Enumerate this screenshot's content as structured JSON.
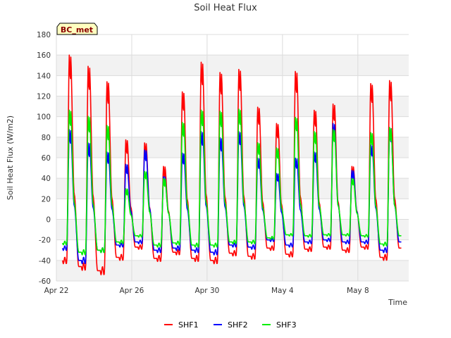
{
  "chart_data": {
    "type": "line",
    "title": "Soil Heat Flux",
    "xlabel": "Time",
    "ylabel": "Soil Heat Flux (W/m2)",
    "ylim": [
      -60,
      180
    ],
    "yticks": [
      -60,
      -40,
      -20,
      0,
      20,
      40,
      60,
      80,
      100,
      120,
      140,
      160,
      180
    ],
    "xlim_days": [
      0,
      18.7
    ],
    "xticks": [
      {
        "day": 0,
        "label": "Apr 22"
      },
      {
        "day": 4,
        "label": "Apr 26"
      },
      {
        "day": 8,
        "label": "Apr 30"
      },
      {
        "day": 12,
        "label": "May 4"
      },
      {
        "day": 16,
        "label": "May 8"
      }
    ],
    "tag": "BC_met",
    "legend_position": "bottom-center",
    "series": [
      {
        "name": "SHF1",
        "color": "#ff0000",
        "night": [
          -40,
          -46,
          -50,
          -37,
          -27,
          -38,
          -32,
          -38,
          -40,
          -33,
          -36,
          -28,
          -34,
          -29,
          -27,
          -30,
          -27,
          -37,
          -28
        ],
        "peaks": [
          161,
          150,
          135,
          78,
          75,
          52,
          125,
          154,
          144,
          147,
          110,
          94,
          145,
          107,
          113,
          52,
          133,
          136
        ]
      },
      {
        "name": "SHF2",
        "color": "#0000ff",
        "night": [
          -28,
          -40,
          -30,
          -25,
          -22,
          -30,
          -28,
          -30,
          -32,
          -25,
          -27,
          -20,
          -25,
          -22,
          -20,
          -22,
          -22,
          -30,
          -22
        ],
        "peaks": [
          88,
          75,
          66,
          54,
          68,
          42,
          65,
          86,
          80,
          86,
          60,
          45,
          60,
          66,
          94,
          48,
          73,
          90
        ]
      },
      {
        "name": "SHF3",
        "color": "#00ee00",
        "night": [
          -23,
          -32,
          -30,
          -22,
          -16,
          -25,
          -23,
          -25,
          -25,
          -22,
          -22,
          -18,
          -15,
          -16,
          -15,
          -15,
          -16,
          -24,
          -16
        ],
        "peaks": [
          107,
          101,
          92,
          30,
          47,
          40,
          95,
          107,
          106,
          108,
          75,
          70,
          100,
          86,
          88,
          40,
          85,
          90
        ]
      }
    ]
  }
}
